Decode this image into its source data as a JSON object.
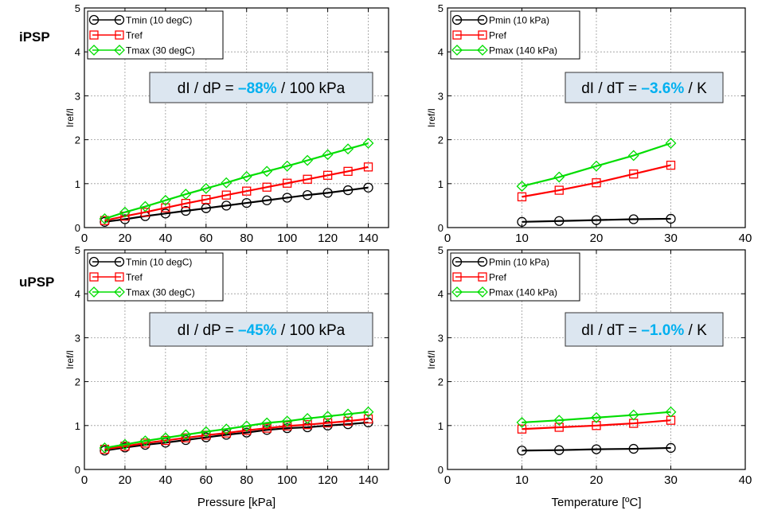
{
  "row_labels": [
    "iPSP",
    "uPSP"
  ],
  "shared_axes": {
    "ylabel": "Iref/I",
    "left_xlabel": "Pressure  [kPa]",
    "right_xlabel": "Temperature  [ºC]"
  },
  "colors": {
    "min": "#000000",
    "ref": "#ff0000",
    "max": "#00dd00",
    "box_fill": "#dce6f0",
    "highlight": "#00b0f0"
  },
  "chart_data": [
    {
      "type": "line",
      "row": "iPSP",
      "xlabel": "Pressure  [kPa]",
      "ylabel": "Iref/I",
      "xlim": [
        0,
        150
      ],
      "ylim": [
        0,
        5
      ],
      "xticks": [
        0,
        20,
        40,
        60,
        80,
        100,
        120,
        140
      ],
      "yticks": [
        0,
        1,
        2,
        3,
        4,
        5
      ],
      "grid": true,
      "legend_position": "top-left",
      "annotation": {
        "prefix": "dI / dP = ",
        "value": "–88%",
        "suffix": " / 100 kPa"
      },
      "series": [
        {
          "name": "Tmin (10 degC)",
          "marker": "circle",
          "color": "#000000",
          "x": [
            10,
            20,
            30,
            40,
            50,
            60,
            70,
            80,
            90,
            100,
            110,
            120,
            130,
            140
          ],
          "y": [
            0.13,
            0.19,
            0.26,
            0.32,
            0.38,
            0.44,
            0.5,
            0.56,
            0.62,
            0.68,
            0.74,
            0.79,
            0.85,
            0.91
          ]
        },
        {
          "name": "Tref",
          "marker": "square",
          "color": "#ff0000",
          "x": [
            10,
            20,
            30,
            40,
            50,
            60,
            70,
            80,
            90,
            100,
            110,
            120,
            130,
            140
          ],
          "y": [
            0.16,
            0.26,
            0.35,
            0.45,
            0.55,
            0.64,
            0.74,
            0.83,
            0.92,
            1.01,
            1.1,
            1.19,
            1.28,
            1.38
          ]
        },
        {
          "name": "Tmax (30 degC)",
          "marker": "diamond",
          "color": "#00dd00",
          "x": [
            10,
            20,
            30,
            40,
            50,
            60,
            70,
            80,
            90,
            100,
            110,
            120,
            130,
            140
          ],
          "y": [
            0.2,
            0.35,
            0.48,
            0.62,
            0.76,
            0.89,
            1.02,
            1.16,
            1.28,
            1.4,
            1.53,
            1.66,
            1.79,
            1.92
          ]
        }
      ]
    },
    {
      "type": "line",
      "row": "iPSP",
      "xlabel": "Temperature  [ºC]",
      "ylabel": "Iref/I",
      "xlim": [
        0,
        40
      ],
      "ylim": [
        0,
        5
      ],
      "xticks": [
        0,
        10,
        20,
        30,
        40
      ],
      "yticks": [
        0,
        1,
        2,
        3,
        4,
        5
      ],
      "grid": true,
      "legend_position": "top-left",
      "annotation": {
        "prefix": "dI / dT = ",
        "value": "–3.6%",
        "suffix": " / K"
      },
      "series": [
        {
          "name": "Pmin (10 kPa)",
          "marker": "circle",
          "color": "#000000",
          "x": [
            10,
            15,
            20,
            25,
            30
          ],
          "y": [
            0.13,
            0.15,
            0.17,
            0.19,
            0.2
          ]
        },
        {
          "name": "Pref",
          "marker": "square",
          "color": "#ff0000",
          "x": [
            10,
            15,
            20,
            25,
            30
          ],
          "y": [
            0.7,
            0.85,
            1.02,
            1.22,
            1.42
          ]
        },
        {
          "name": "Pmax (140 kPa)",
          "marker": "diamond",
          "color": "#00dd00",
          "x": [
            10,
            15,
            20,
            25,
            30
          ],
          "y": [
            0.94,
            1.15,
            1.4,
            1.64,
            1.92
          ]
        }
      ]
    },
    {
      "type": "line",
      "row": "uPSP",
      "xlabel": "Pressure  [kPa]",
      "ylabel": "Iref/I",
      "xlim": [
        0,
        150
      ],
      "ylim": [
        0,
        5
      ],
      "xticks": [
        0,
        20,
        40,
        60,
        80,
        100,
        120,
        140
      ],
      "yticks": [
        0,
        1,
        2,
        3,
        4,
        5
      ],
      "grid": true,
      "legend_position": "top-left",
      "annotation": {
        "prefix": "dI / dP = ",
        "value": "–45%",
        "suffix": " / 100 kPa"
      },
      "series": [
        {
          "name": "Tmin (10 degC)",
          "marker": "circle",
          "color": "#000000",
          "x": [
            10,
            20,
            30,
            40,
            50,
            60,
            70,
            80,
            90,
            100,
            110,
            120,
            130,
            140
          ],
          "y": [
            0.43,
            0.5,
            0.56,
            0.61,
            0.67,
            0.73,
            0.79,
            0.84,
            0.9,
            0.94,
            0.96,
            1.0,
            1.03,
            1.07
          ]
        },
        {
          "name": "Tref",
          "marker": "square",
          "color": "#ff0000",
          "x": [
            10,
            20,
            30,
            40,
            50,
            60,
            70,
            80,
            90,
            100,
            110,
            120,
            130,
            140
          ],
          "y": [
            0.46,
            0.53,
            0.6,
            0.66,
            0.72,
            0.78,
            0.83,
            0.89,
            0.94,
            0.99,
            1.02,
            1.06,
            1.1,
            1.15
          ]
        },
        {
          "name": "Tmax (30 degC)",
          "marker": "diamond",
          "color": "#00dd00",
          "x": [
            10,
            20,
            30,
            40,
            50,
            60,
            70,
            80,
            90,
            100,
            110,
            120,
            130,
            140
          ],
          "y": [
            0.49,
            0.57,
            0.65,
            0.72,
            0.79,
            0.86,
            0.92,
            0.99,
            1.06,
            1.1,
            1.16,
            1.21,
            1.26,
            1.31
          ]
        }
      ]
    },
    {
      "type": "line",
      "row": "uPSP",
      "xlabel": "Temperature  [ºC]",
      "ylabel": "Iref/I",
      "xlim": [
        0,
        40
      ],
      "ylim": [
        0,
        5
      ],
      "xticks": [
        0,
        10,
        20,
        30,
        40
      ],
      "yticks": [
        0,
        1,
        2,
        3,
        4,
        5
      ],
      "grid": true,
      "legend_position": "top-left",
      "annotation": {
        "prefix": "dI / dT = ",
        "value": "–1.0%",
        "suffix": " / K"
      },
      "series": [
        {
          "name": "Pmin (10 kPa)",
          "marker": "circle",
          "color": "#000000",
          "x": [
            10,
            15,
            20,
            25,
            30
          ],
          "y": [
            0.43,
            0.44,
            0.46,
            0.47,
            0.49
          ]
        },
        {
          "name": "Pref",
          "marker": "square",
          "color": "#ff0000",
          "x": [
            10,
            15,
            20,
            25,
            30
          ],
          "y": [
            0.92,
            0.96,
            1.0,
            1.05,
            1.12
          ]
        },
        {
          "name": "Pmax (140 kPa)",
          "marker": "diamond",
          "color": "#00dd00",
          "x": [
            10,
            15,
            20,
            25,
            30
          ],
          "y": [
            1.07,
            1.12,
            1.18,
            1.24,
            1.31
          ]
        }
      ]
    }
  ]
}
